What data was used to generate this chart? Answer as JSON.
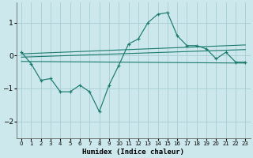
{
  "x": [
    0,
    1,
    2,
    3,
    4,
    5,
    6,
    7,
    8,
    9,
    10,
    11,
    12,
    13,
    14,
    15,
    16,
    17,
    18,
    19,
    20,
    21,
    22,
    23
  ],
  "y_main": [
    0.1,
    -0.25,
    -0.75,
    -0.7,
    -1.1,
    -1.1,
    -0.9,
    -1.1,
    -1.7,
    -0.9,
    -0.3,
    0.35,
    0.5,
    1.0,
    1.25,
    1.3,
    0.6,
    0.3,
    0.3,
    0.2,
    -0.1,
    0.1,
    -0.2,
    -0.2
  ],
  "color": "#1a7a6e",
  "bg_color": "#cce8ec",
  "grid_color": "#a8cdd3",
  "xlabel": "Humidex (Indice chaleur)",
  "ylim": [
    -2.5,
    1.6
  ],
  "xlim": [
    -0.5,
    23.5
  ],
  "yticks": [
    -2,
    -1,
    0,
    1
  ],
  "xticks": [
    0,
    1,
    2,
    3,
    4,
    5,
    6,
    7,
    8,
    9,
    10,
    11,
    12,
    13,
    14,
    15,
    16,
    17,
    18,
    19,
    20,
    21,
    22,
    23
  ],
  "line1_x0": 0,
  "line1_y0": 0.05,
  "line1_x1": 23,
  "line1_y1": 0.32,
  "line2_x0": 0,
  "line2_y0": -0.05,
  "line2_x1": 23,
  "line2_y1": 0.18,
  "line3_x0": 0,
  "line3_y0": -0.18,
  "line3_x1": 23,
  "line3_y1": -0.22
}
